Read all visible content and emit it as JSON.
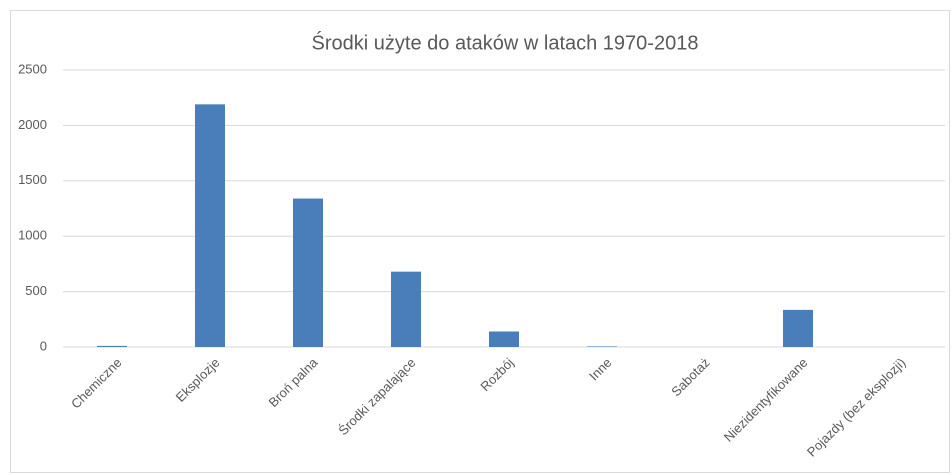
{
  "chart_data": {
    "type": "bar",
    "title": "Środki użyte do ataków w latach 1970-2018",
    "categories": [
      "Chemiczne",
      "Eksplozje",
      "Broń palna",
      "Środki zapalające",
      "Rozbój",
      "Inne",
      "Sabotaż",
      "Niezidentyfikowane",
      "Pojazdy (bez eksplozji)"
    ],
    "values": [
      10,
      2190,
      1340,
      680,
      140,
      5,
      0,
      335,
      0
    ],
    "color": "#4a7ebb",
    "ylim": [
      0,
      2500
    ],
    "yticks": [
      0,
      500,
      1000,
      1500,
      2000,
      2500
    ],
    "grid": true
  }
}
